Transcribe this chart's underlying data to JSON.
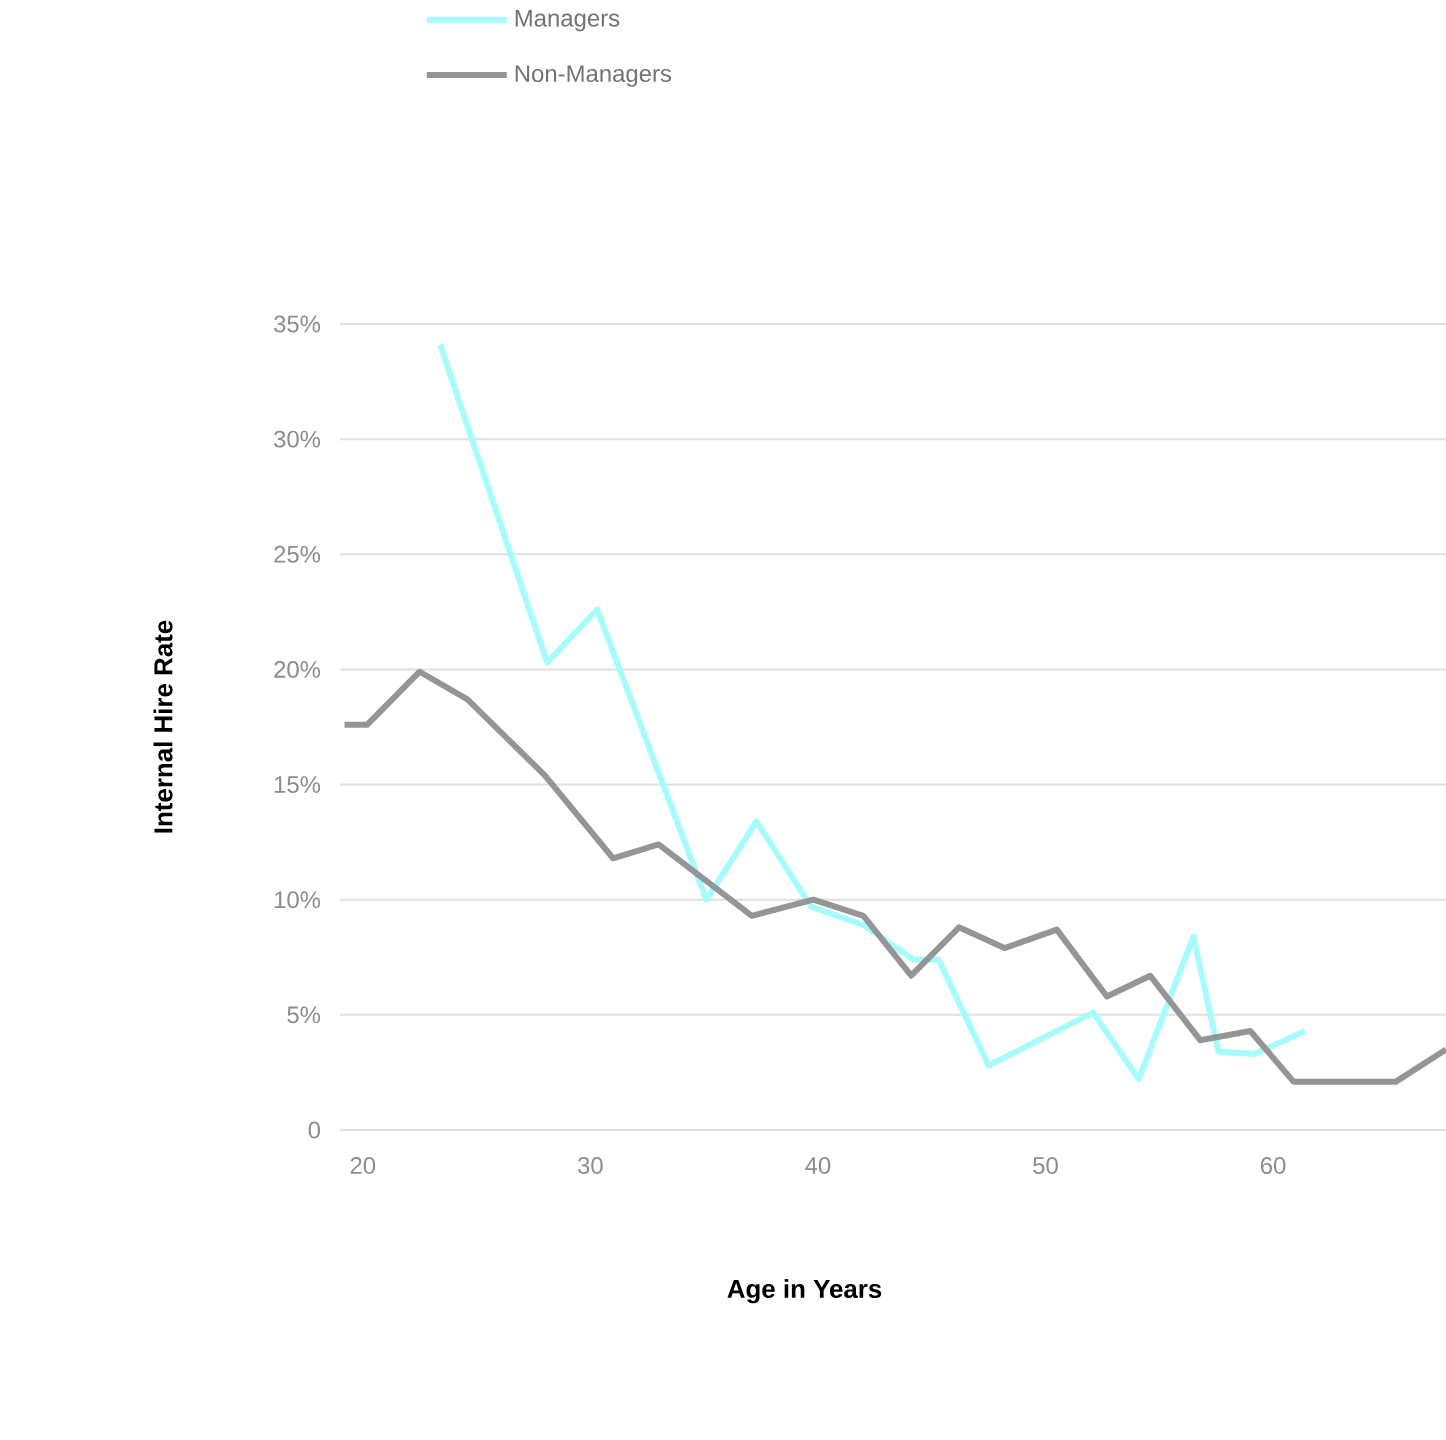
{
  "chart_data": {
    "type": "line",
    "xlabel": "Age in Years",
    "ylabel": "Internal Hire Rate",
    "series": [
      {
        "name": "Managers",
        "color": "#a6fcfc",
        "x": [
          23.4,
          28.1,
          30.3,
          35.1,
          37.3,
          39.7,
          42.0,
          44.2,
          45.3,
          47.5,
          52.1,
          54.1,
          56.5,
          57.6,
          59.2,
          61.4
        ],
        "values": [
          34.1,
          20.3,
          22.6,
          10.0,
          13.4,
          9.7,
          8.9,
          7.4,
          7.4,
          2.8,
          5.1,
          2.2,
          8.4,
          3.4,
          3.3,
          4.3
        ]
      },
      {
        "name": "Non-Managers",
        "color": "#959595",
        "x": [
          19.2,
          20.2,
          22.5,
          24.6,
          28.0,
          31.0,
          33.0,
          37.1,
          39.8,
          42.0,
          44.1,
          46.2,
          48.2,
          50.5,
          52.7,
          54.6,
          56.8,
          59.0,
          60.9,
          65.4,
          67.6
        ],
        "values": [
          17.6,
          17.6,
          19.9,
          18.7,
          15.4,
          11.8,
          12.4,
          9.3,
          10.0,
          9.3,
          6.7,
          8.8,
          7.9,
          8.7,
          5.8,
          6.7,
          3.9,
          4.3,
          2.1,
          2.1,
          3.5
        ]
      }
    ],
    "xlim": [
      19,
      67.6
    ],
    "xticks": [
      20,
      30,
      40,
      50,
      60
    ],
    "ylim": [
      0,
      35
    ],
    "yticks": [
      {
        "value": 0,
        "label": "0"
      },
      {
        "value": 5,
        "label": "5%"
      },
      {
        "value": 10,
        "label": "10%"
      },
      {
        "value": 15,
        "label": "15%"
      },
      {
        "value": 20,
        "label": "20%"
      },
      {
        "value": 25,
        "label": "25%"
      },
      {
        "value": 30,
        "label": "30%"
      },
      {
        "value": 35,
        "label": "35%"
      }
    ],
    "grid": "y",
    "legend": "top left",
    "marker": "none",
    "line_style": "solid"
  }
}
